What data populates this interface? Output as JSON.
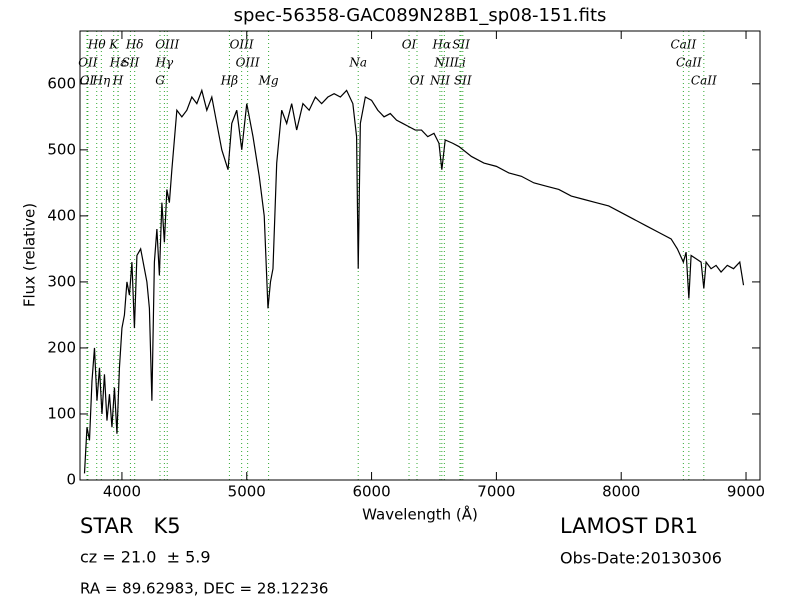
{
  "chart_data": {
    "type": "line",
    "title": "spec-56358-GAC089N28B1_sp08-151.fits",
    "x_label": "Wavelength (Å)",
    "y_label": "Flux (relative)",
    "xlim": [
      3664,
      9112
    ],
    "ylim": [
      0,
      680
    ],
    "xticks": [
      4000,
      5000,
      6000,
      7000,
      8000,
      9000
    ],
    "yticks": [
      0,
      100,
      200,
      300,
      400,
      500,
      600
    ],
    "line_color": "#000000",
    "marker_color": "#33aa33",
    "x": [
      3700,
      3720,
      3740,
      3760,
      3780,
      3800,
      3820,
      3840,
      3860,
      3880,
      3900,
      3920,
      3940,
      3960,
      3980,
      4000,
      4020,
      4040,
      4060,
      4080,
      4100,
      4120,
      4150,
      4180,
      4200,
      4220,
      4240,
      4260,
      4280,
      4300,
      4320,
      4340,
      4360,
      4380,
      4400,
      4440,
      4480,
      4520,
      4560,
      4600,
      4640,
      4680,
      4720,
      4760,
      4800,
      4850,
      4880,
      4920,
      4960,
      5000,
      5050,
      5100,
      5140,
      5170,
      5190,
      5210,
      5240,
      5280,
      5320,
      5360,
      5400,
      5450,
      5500,
      5550,
      5600,
      5650,
      5700,
      5750,
      5800,
      5850,
      5880,
      5893,
      5910,
      5950,
      6000,
      6050,
      6100,
      6150,
      6200,
      6250,
      6300,
      6350,
      6400,
      6450,
      6500,
      6540,
      6563,
      6590,
      6650,
      6700,
      6800,
      6900,
      7000,
      7100,
      7200,
      7300,
      7400,
      7500,
      7600,
      7700,
      7800,
      7900,
      8000,
      8100,
      8200,
      8300,
      8400,
      8450,
      8498,
      8520,
      8542,
      8560,
      8600,
      8640,
      8662,
      8680,
      8720,
      8760,
      8800,
      8850,
      8900,
      8950,
      8980
    ],
    "values": [
      10,
      80,
      60,
      150,
      200,
      120,
      170,
      100,
      160,
      90,
      130,
      80,
      140,
      70,
      170,
      230,
      250,
      300,
      280,
      330,
      230,
      340,
      350,
      320,
      300,
      260,
      120,
      330,
      380,
      310,
      420,
      360,
      440,
      420,
      470,
      560,
      550,
      560,
      580,
      570,
      590,
      560,
      580,
      540,
      500,
      470,
      540,
      560,
      500,
      570,
      520,
      460,
      400,
      260,
      300,
      320,
      480,
      560,
      540,
      570,
      530,
      570,
      560,
      580,
      570,
      580,
      585,
      580,
      590,
      570,
      520,
      320,
      540,
      580,
      575,
      560,
      550,
      555,
      545,
      540,
      535,
      530,
      530,
      520,
      525,
      510,
      470,
      515,
      510,
      505,
      490,
      480,
      475,
      465,
      460,
      450,
      445,
      440,
      430,
      425,
      420,
      415,
      405,
      395,
      385,
      375,
      365,
      350,
      330,
      345,
      275,
      340,
      335,
      330,
      290,
      330,
      320,
      325,
      315,
      325,
      320,
      330,
      295
    ],
    "annotations": [
      {
        "label": "Hθ",
        "x": 3798
      },
      {
        "label": "K",
        "x": 3934
      },
      {
        "label": "Hδ",
        "x": 4102
      },
      {
        "label": "OIII",
        "x": 4363
      },
      {
        "label": "OIII",
        "x": 4959
      },
      {
        "label": "OI",
        "x": 6300
      },
      {
        "label": "Hα",
        "x": 6563
      },
      {
        "label": "SII",
        "x": 6717
      },
      {
        "label": "CaII",
        "x": 8498
      },
      {
        "label": "OII",
        "x": 3727
      },
      {
        "label": "Hε",
        "x": 3970
      },
      {
        "label": "SII",
        "x": 4068
      },
      {
        "label": "Hγ",
        "x": 4340
      },
      {
        "label": "OIII",
        "x": 5007
      },
      {
        "label": "Na",
        "x": 5893
      },
      {
        "label": "NII",
        "x": 6583
      },
      {
        "label": "Li",
        "x": 6708
      },
      {
        "label": "CaII",
        "x": 8542
      },
      {
        "label": "OI",
        "x": 3720
      },
      {
        "label": "Hη",
        "x": 3835
      },
      {
        "label": "H",
        "x": 3968
      },
      {
        "label": "G",
        "x": 4305
      },
      {
        "label": "Hβ",
        "x": 4861
      },
      {
        "label": "Mg",
        "x": 5175
      },
      {
        "label": "OI",
        "x": 6364
      },
      {
        "label": "NII",
        "x": 6548
      },
      {
        "label": "SII",
        "x": 6731
      },
      {
        "label": "CaII",
        "x": 8662
      }
    ]
  },
  "info": {
    "class": "STAR   K5",
    "redshift": "cz = 21.0  ± 5.9",
    "coords": "RA = 89.62983, DEC = 28.12236",
    "survey": "LAMOST DR1",
    "obs_date": "Obs-Date:20130306"
  }
}
